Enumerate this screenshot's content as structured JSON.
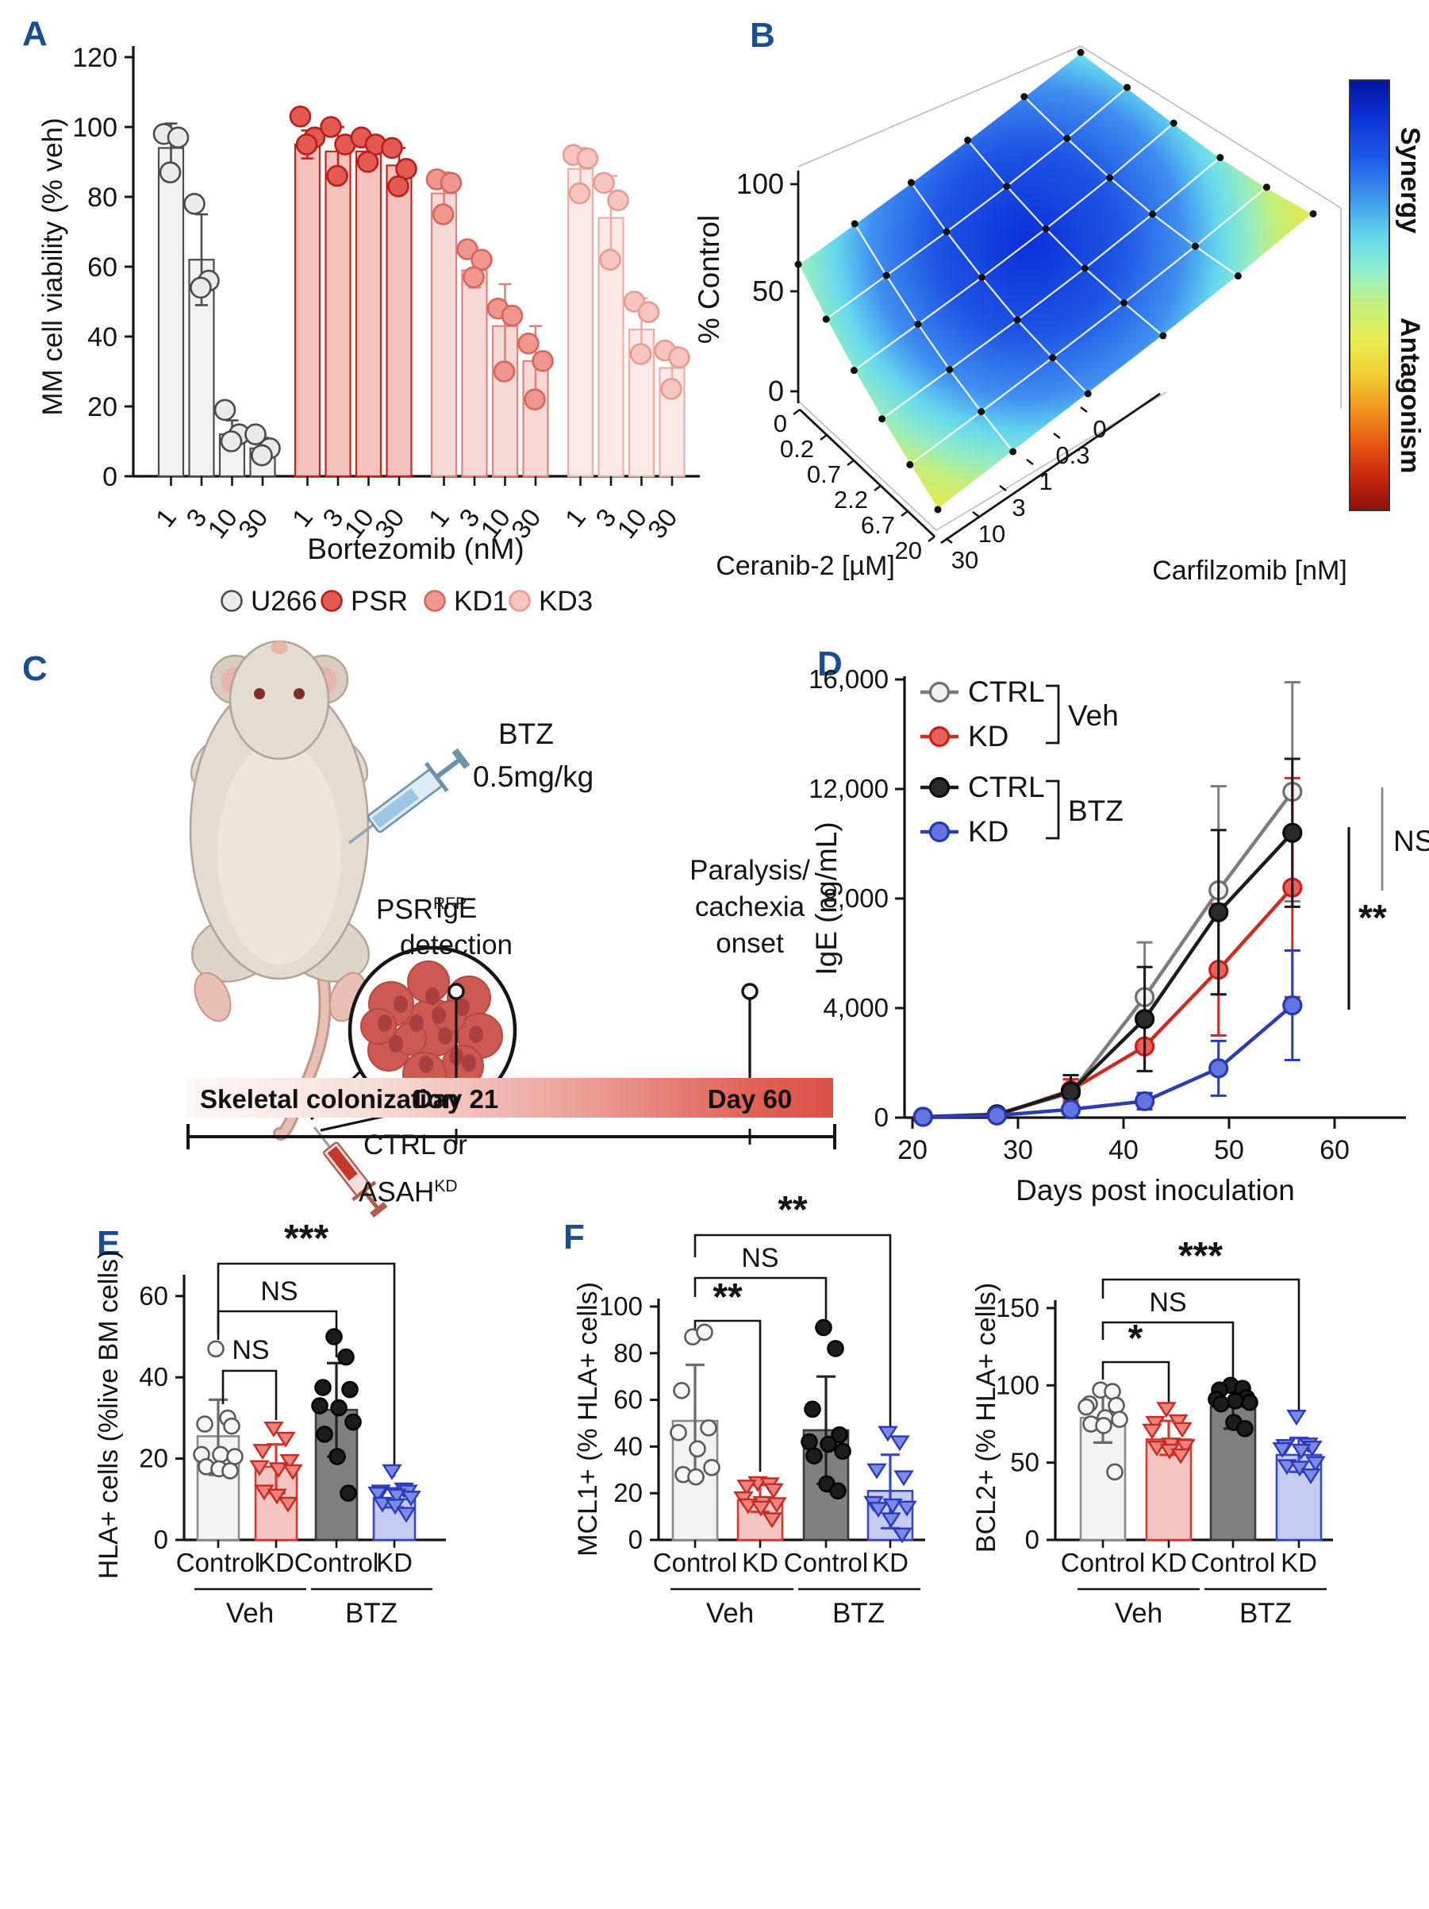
{
  "colors": {
    "accent": "#1a4e8f",
    "red": "#c32420",
    "blue": "#3b4cc0",
    "gray": "#7f7f7d"
  },
  "panel_a": {
    "label": "A",
    "ylabel": "MM cell viability (% veh)",
    "xlabel": "Bortezomib (nM)",
    "yticks": [
      0,
      20,
      40,
      60,
      80,
      100,
      120
    ],
    "doses": [
      "1",
      "3",
      "10",
      "30"
    ],
    "legend": [
      "U266",
      "PSR",
      "KD1",
      "KD3"
    ],
    "chart_data": {
      "type": "bar",
      "categories": [
        "1 nM",
        "3 nM",
        "10 nM",
        "30 nM"
      ],
      "series": [
        {
          "name": "U266",
          "values": [
            94,
            62,
            12,
            8
          ],
          "errors": [
            [
              87,
              101
            ],
            [
              49,
              75
            ],
            [
              8,
              16
            ],
            [
              5,
              11
            ]
          ],
          "points": [
            [
              98,
              97,
              87
            ],
            [
              78,
              56,
              54
            ],
            [
              19,
              12,
              10
            ],
            [
              12,
              8,
              6
            ]
          ]
        },
        {
          "name": "PSR",
          "values": [
            95,
            93,
            93,
            89
          ],
          "errors": [
            [
              91,
              99
            ],
            [
              86,
              100
            ],
            [
              89,
              97
            ],
            [
              84,
              94
            ]
          ],
          "points": [
            [
              103,
              97,
              95
            ],
            [
              100,
              95,
              86
            ],
            [
              97,
              95,
              90
            ],
            [
              94,
              88,
              83
            ]
          ]
        },
        {
          "name": "KD1",
          "values": [
            81,
            59,
            43,
            33
          ],
          "errors": [
            [
              75,
              87
            ],
            [
              54,
              64
            ],
            [
              31,
              55
            ],
            [
              23,
              43
            ]
          ],
          "points": [
            [
              85,
              84,
              75
            ],
            [
              65,
              62,
              57
            ],
            [
              48,
              46,
              30
            ],
            [
              38,
              33,
              22
            ]
          ]
        },
        {
          "name": "KD3",
          "values": [
            88,
            74,
            42,
            31
          ],
          "errors": [
            [
              82,
              94
            ],
            [
              62,
              86
            ],
            [
              33,
              51
            ],
            [
              25,
              37
            ]
          ],
          "points": [
            [
              92,
              91,
              81
            ],
            [
              84,
              79,
              62
            ],
            [
              50,
              47,
              35
            ],
            [
              36,
              34,
              25
            ]
          ]
        }
      ],
      "title": "",
      "xlabel": "Bortezomib (nM)",
      "ylabel": "MM cell viability (% veh)",
      "ylim": [
        0,
        120
      ]
    }
  },
  "panel_b": {
    "label": "B",
    "zlabel": "% Control",
    "zticks": [
      "0",
      "50",
      "100"
    ],
    "x_axis": {
      "label": "Carfilzomib [nM]",
      "ticks": [
        "30",
        "10",
        "3",
        "1",
        "0.3",
        "0"
      ]
    },
    "y_axis": {
      "label": "Ceranib-2 [µM]",
      "ticks": [
        "0",
        "0.2",
        "0.7",
        "2.2",
        "6.7",
        "20"
      ]
    },
    "colorbar": {
      "top": "Synergy",
      "bottom": "Antagonism"
    },
    "chart_data": {
      "type": "heatmap",
      "note": "3D synergy surface, % Control for Ceranib-2 x Carfilzomib",
      "ceranib_uM": [
        0,
        0.2,
        0.7,
        2.2,
        6.7,
        20
      ],
      "carfilzomib_nM": [
        0,
        0.3,
        1,
        3,
        10,
        30
      ],
      "percent_control": [
        [
          100,
          88,
          74,
          64,
          70,
          86
        ],
        [
          84,
          60,
          44,
          38,
          46,
          62
        ],
        [
          70,
          42,
          26,
          20,
          30,
          46
        ],
        [
          60,
          32,
          16,
          10,
          20,
          36
        ],
        [
          54,
          28,
          12,
          7,
          13,
          26
        ],
        [
          50,
          24,
          10,
          5,
          9,
          16
        ]
      ],
      "zlim": [
        0,
        100
      ]
    }
  },
  "panel_c": {
    "label": "C",
    "btz1": "BTZ",
    "btz2": "0.5mg/kg",
    "psr": "PSR",
    "psr_sup": "RFP",
    "ctrl1": "CTRL or",
    "ctrl2": "ASAH",
    "ctrl_sup": "KD",
    "ige1": "IgE",
    "ige2": "detection",
    "par1": "Paralysis/",
    "par2": "cachexia",
    "par3": "onset",
    "timeline": {
      "phase": "Skeletal colonization",
      "day21": "Day 21",
      "day60": "Day 60"
    }
  },
  "panel_d": {
    "label": "D",
    "ylabel": "IgE (ng/mL)",
    "xlabel": "Days post inoculation",
    "ytick_labels": [
      "0",
      "4,000",
      "8,000",
      "12,000",
      "16,000"
    ],
    "ytick_values": [
      0,
      4000,
      8000,
      12000,
      16000
    ],
    "xticks": [
      20,
      30,
      40,
      50,
      60
    ],
    "annotations": [
      "NS",
      "**"
    ],
    "legend_groups": [
      "Veh",
      "BTZ"
    ],
    "chart_data": {
      "type": "line",
      "x": [
        21,
        28,
        35,
        42,
        49,
        56
      ],
      "series": [
        {
          "name": "CTRL",
          "group": "Veh",
          "color_key": "gray",
          "values": [
            30,
            120,
            900,
            4400,
            8300,
            11900
          ],
          "errors": [
            50,
            150,
            500,
            2000,
            3800,
            4000
          ]
        },
        {
          "name": "KD",
          "group": "Veh",
          "color_key": "red",
          "values": [
            30,
            80,
            1000,
            2600,
            5400,
            8400
          ],
          "errors": [
            40,
            100,
            400,
            900,
            2400,
            4000
          ]
        },
        {
          "name": "CTRL",
          "group": "BTZ",
          "color_key": "black",
          "values": [
            30,
            120,
            950,
            3600,
            7500,
            10400
          ],
          "errors": [
            50,
            150,
            600,
            1900,
            3000,
            2700
          ]
        },
        {
          "name": "KD",
          "group": "BTZ",
          "color_key": "blue",
          "values": [
            30,
            80,
            300,
            600,
            1800,
            4100
          ],
          "errors": [
            40,
            80,
            200,
            300,
            1000,
            2000
          ]
        }
      ],
      "xlabel": "Days post inoculation",
      "ylabel": "IgE (ng/mL)",
      "ylim": [
        0,
        16000
      ]
    }
  },
  "panel_e": {
    "label": "E",
    "ylabel": "HLA+ cells (%live BM cells)",
    "yticks": [
      0,
      20,
      40,
      60
    ],
    "xlabels": [
      "Control",
      "KD",
      "Control",
      "KD"
    ],
    "group_labels": [
      "Veh",
      "BTZ"
    ],
    "brackets": [
      "***",
      "NS",
      "NS"
    ],
    "chart_data": {
      "type": "bar",
      "categories": [
        "Control Veh",
        "KD Veh",
        "Control BTZ",
        "KD BTZ"
      ],
      "values": [
        25.5,
        18,
        32,
        10
      ],
      "errors": [
        [
          16,
          34.5
        ],
        [
          11.5,
          23.5
        ],
        [
          20.5,
          43.5
        ],
        [
          8,
          12.7
        ]
      ],
      "points": [
        [
          47,
          30,
          28.5,
          28,
          21,
          21,
          20.5,
          18,
          17.5,
          17
        ],
        [
          27.5,
          25,
          22,
          19.5,
          18,
          17.5,
          17,
          12,
          11,
          9
        ],
        [
          50,
          45,
          37.5,
          37,
          33,
          32.5,
          29,
          26,
          20.5,
          11.5
        ],
        [
          17,
          12.5,
          12,
          12,
          11.5,
          11,
          10.5,
          9,
          8.5,
          6.5
        ]
      ],
      "ylim": [
        0,
        60
      ]
    }
  },
  "panel_f": {
    "label": "F",
    "left": {
      "ylabel": "MCL1+ (% HLA+ cells)",
      "yticks": [
        0,
        20,
        40,
        60,
        80,
        100
      ],
      "xlabels": [
        "Control",
        "KD",
        "Control",
        "KD"
      ],
      "group_labels": [
        "Veh",
        "BTZ"
      ],
      "brackets": [
        "**",
        "NS",
        "**"
      ],
      "chart_data": {
        "type": "bar",
        "categories": [
          "Control Veh",
          "KD Veh",
          "Control BTZ",
          "KD BTZ"
        ],
        "values": [
          51,
          17,
          47,
          21
        ],
        "errors": [
          [
            27,
            75
          ],
          [
            12,
            23.5
          ],
          [
            24,
            70
          ],
          [
            5,
            36.5
          ]
        ],
        "points": [
          [
            87,
            89,
            64,
            48,
            46,
            39,
            31,
            28,
            27
          ],
          [
            24.5,
            24,
            23,
            21.5,
            18,
            16,
            15.5,
            15,
            14,
            9
          ],
          [
            91,
            82,
            56,
            45,
            42,
            41,
            38,
            36,
            24,
            21
          ],
          [
            46,
            42,
            30,
            27,
            16,
            15,
            14,
            13.5,
            9,
            2.5
          ]
        ],
        "ylim": [
          0,
          100
        ]
      }
    },
    "right": {
      "ylabel": "BCL2+  (% HLA+ cells)",
      "yticks": [
        0,
        50,
        100,
        150
      ],
      "xlabels": [
        "Control",
        "KD",
        "Control",
        "KD"
      ],
      "group_labels": [
        "Veh",
        "BTZ"
      ],
      "brackets": [
        "***",
        "NS",
        "*"
      ],
      "chart_data": {
        "type": "bar",
        "categories": [
          "Control Veh",
          "KD Veh",
          "Control BTZ",
          "KD BTZ"
        ],
        "values": [
          79,
          65,
          86,
          55
        ],
        "errors": [
          [
            63,
            96
          ],
          [
            55,
            77
          ],
          [
            72,
            97
          ],
          [
            44,
            66
          ]
        ],
        "points": [
          [
            97,
            96,
            88,
            87,
            86,
            79,
            78,
            75,
            74,
            44
          ],
          [
            85,
            77,
            76,
            72,
            71,
            62,
            61,
            60,
            58,
            55
          ],
          [
            100,
            98,
            97,
            92,
            91,
            90,
            89,
            88,
            76,
            72
          ],
          [
            80,
            62,
            61,
            60,
            59,
            58,
            50,
            48,
            47,
            42
          ]
        ],
        "ylim": [
          0,
          150
        ]
      }
    }
  }
}
